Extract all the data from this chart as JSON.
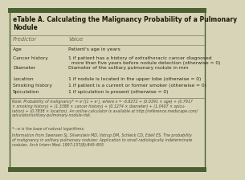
{
  "title": "eTable A. Calculating the Malignancy Probability of a Pulmonary\nNodule",
  "header": [
    "Predictor",
    "Value"
  ],
  "rows": [
    [
      "Age",
      "Patient's age in years"
    ],
    [
      "Cancer history",
      "1 if patient has a history of extrathoracic cancer diagnosed\n  more than five years before nodule detection (otherwise = 0)"
    ],
    [
      "Diameter",
      "Diameter of the solitary pulmonary nodule in mm"
    ],
    [
      "Location",
      "1 if nodule is located in the upper lobe (otherwise = 0)"
    ],
    [
      "Smoking history",
      "1 if patient is a current or former smoker (otherwise = 0)"
    ],
    [
      "Spiculation",
      "1 if spiculation is present (otherwise = 0)"
    ]
  ],
  "footnote1": "Note: Probability of malignancy* = eˣ/(1 + eˣ), where x = -6.8272 + (0.0391 × age) + (0.7917\n× smoking history) + (1.3388 × cancer history) + (0.1274 × diameter) + (1.0407 × spicu-\nlation) + (0.7838 × location). An online calculator is available at http://reference.medscape.com/\ncalculator/solitary-pulmonary-nodule-risk.",
  "footnote2": "*—e is the base of natural logarithms.",
  "footnote3": "Information from Swensen SJ, Silverstein MD, Ilstrup DM, Schleck CD, Edell ES. The probability\nof malignancy in solitary pulmonary nodules: Application to small radiologically indeterminate\nnodules. Arch Intern Med. 1997;157(8):849–855.",
  "bg_color": "#d8d4b8",
  "border_color_top": "#4a6030",
  "border_color_bottom": "#4a6030",
  "title_color": "#1a1a0a",
  "header_text_color": "#6a6848",
  "row_text_color": "#2a2818",
  "footnote_color": "#4a4838",
  "col_split": 0.3
}
